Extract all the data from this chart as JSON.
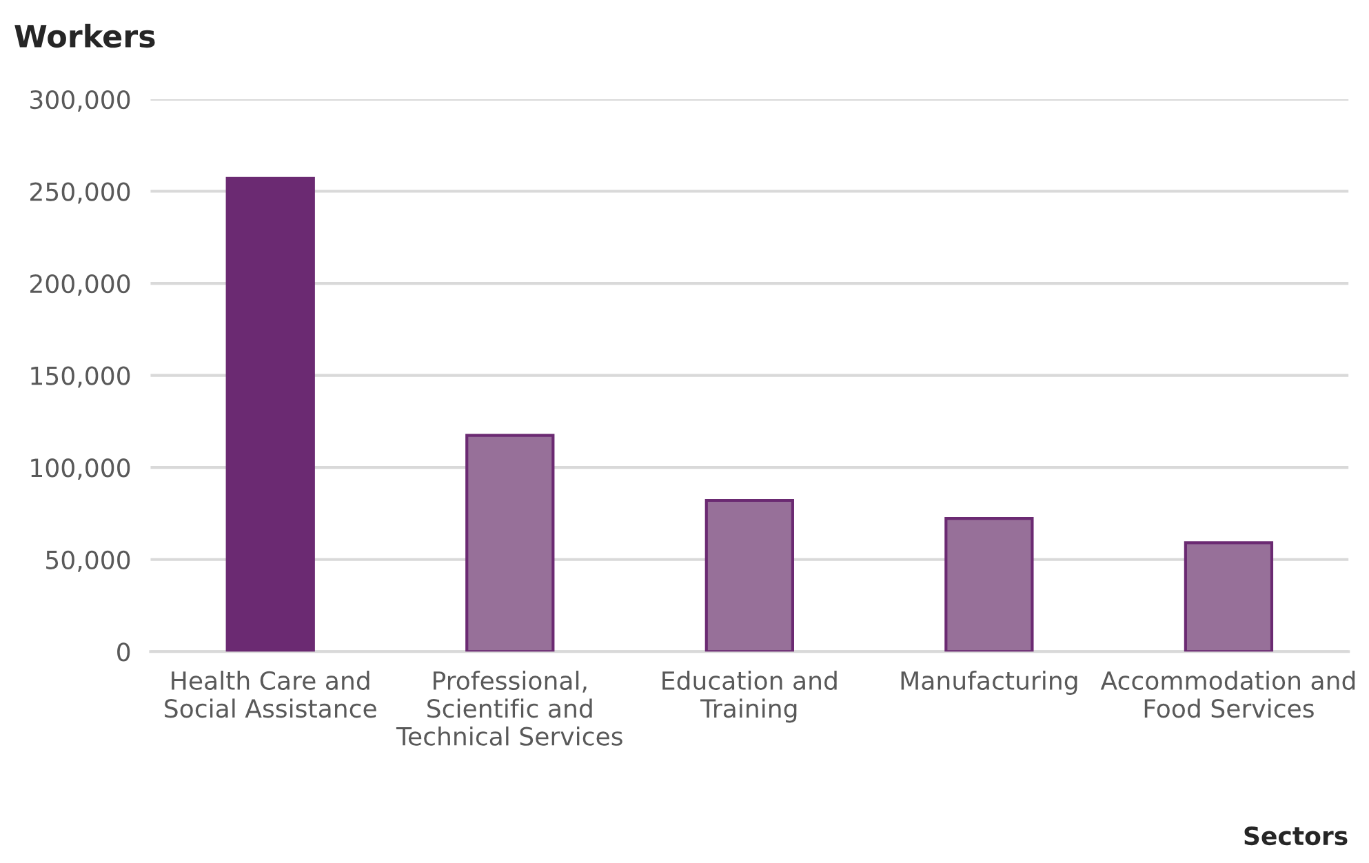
{
  "chart_data": {
    "type": "bar",
    "ylabel": "Workers",
    "xlabel": "Sectors",
    "categories": [
      "Health Care and Social Assistance",
      "Professional, Scientific and Technical Services",
      "Education and Training",
      "Manufacturing",
      "Accommodation and Food Services"
    ],
    "values": [
      257000,
      117400,
      82100,
      72300,
      59100
    ],
    "colors": [
      "#6b2a72",
      "#977099",
      "#977099",
      "#977099",
      "#977099"
    ],
    "ylim": [
      0,
      300000
    ],
    "yticks": [
      {
        "value": 0,
        "label": "0"
      },
      {
        "value": 50000,
        "label": "50,000"
      },
      {
        "value": 100000,
        "label": "100,000"
      },
      {
        "value": 150000,
        "label": "150,000"
      },
      {
        "value": 200000,
        "label": "200,000"
      },
      {
        "value": 250000,
        "label": "250,000"
      },
      {
        "value": 300000,
        "label": "300,000"
      }
    ],
    "grid": "y",
    "legend": false
  }
}
